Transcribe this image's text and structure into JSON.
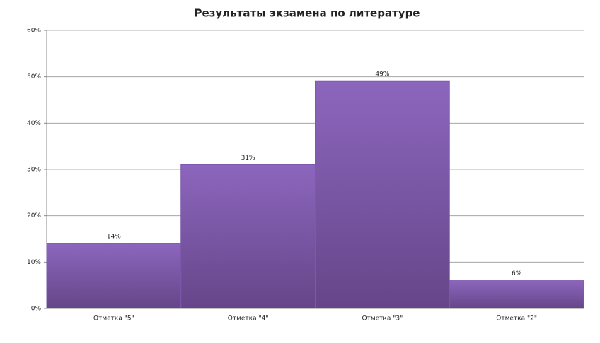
{
  "chart_data": {
    "type": "bar",
    "title": "Результаты экзамена по литературе",
    "categories": [
      "Отметка \"5\"",
      "Отметка \"4\"",
      "Отметка \"3\"",
      "Отметка \"2\""
    ],
    "values": [
      14,
      31,
      49,
      6
    ],
    "value_labels": [
      "14%",
      "31%",
      "49%",
      "6%"
    ],
    "color": "#7d58ad",
    "ylim": [
      0,
      60
    ],
    "yticks": [
      {
        "value": 0,
        "label": "0%"
      },
      {
        "value": 10,
        "label": "10%"
      },
      {
        "value": 20,
        "label": "20%"
      },
      {
        "value": 30,
        "label": "30%"
      },
      {
        "value": 40,
        "label": "40%"
      },
      {
        "value": 50,
        "label": "50%"
      },
      {
        "value": 60,
        "label": "60%"
      }
    ],
    "grid": true
  }
}
